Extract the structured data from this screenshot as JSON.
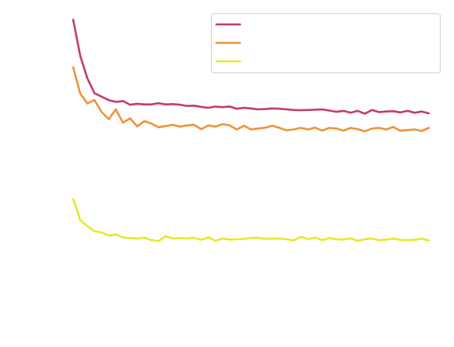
{
  "chart_data": {
    "type": "line",
    "title": "",
    "xlabel": "",
    "ylabel": "",
    "axes_visible": false,
    "grid": false,
    "legend": {
      "placement": "top-right",
      "entries_text": "none shown"
    },
    "x": [
      0,
      1,
      2,
      3,
      4,
      5,
      6,
      7,
      8,
      9,
      10,
      11,
      12,
      13,
      14,
      15,
      16,
      17,
      18,
      19,
      20,
      21,
      22,
      23,
      24,
      25,
      26,
      27,
      28,
      29,
      30,
      31,
      32,
      33,
      34,
      35,
      36,
      37,
      38,
      39,
      40,
      41,
      42,
      43,
      44,
      45,
      46,
      47,
      48,
      49,
      50
    ],
    "xlim": [
      0,
      50
    ],
    "ylim": [
      0,
      1
    ],
    "series": [
      {
        "color": "#c43b6e",
        "values": [
          1.0,
          0.883,
          0.81,
          0.762,
          0.751,
          0.74,
          0.734,
          0.737,
          0.725,
          0.728,
          0.726,
          0.726,
          0.73,
          0.726,
          0.727,
          0.725,
          0.721,
          0.722,
          0.718,
          0.715,
          0.719,
          0.717,
          0.719,
          0.712,
          0.715,
          0.713,
          0.71,
          0.711,
          0.713,
          0.712,
          0.71,
          0.708,
          0.707,
          0.708,
          0.709,
          0.71,
          0.706,
          0.702,
          0.705,
          0.699,
          0.705,
          0.696,
          0.708,
          0.701,
          0.703,
          0.704,
          0.7,
          0.705,
          0.699,
          0.703,
          0.697
        ]
      },
      {
        "color": "#f0923a",
        "values": [
          0.846,
          0.761,
          0.729,
          0.74,
          0.701,
          0.678,
          0.71,
          0.667,
          0.681,
          0.655,
          0.672,
          0.664,
          0.652,
          0.656,
          0.66,
          0.654,
          0.658,
          0.66,
          0.646,
          0.658,
          0.654,
          0.662,
          0.658,
          0.645,
          0.657,
          0.645,
          0.648,
          0.651,
          0.657,
          0.65,
          0.642,
          0.645,
          0.65,
          0.645,
          0.651,
          0.641,
          0.65,
          0.648,
          0.641,
          0.65,
          0.646,
          0.639,
          0.648,
          0.65,
          0.645,
          0.653,
          0.641,
          0.643,
          0.645,
          0.64,
          0.65
        ]
      },
      {
        "color": "#e8e82a",
        "values": [
          0.42,
          0.352,
          0.332,
          0.316,
          0.312,
          0.302,
          0.305,
          0.296,
          0.294,
          0.292,
          0.295,
          0.287,
          0.284,
          0.3,
          0.292,
          0.294,
          0.292,
          0.295,
          0.288,
          0.296,
          0.285,
          0.292,
          0.289,
          0.29,
          0.291,
          0.294,
          0.295,
          0.291,
          0.292,
          0.292,
          0.29,
          0.286,
          0.298,
          0.29,
          0.296,
          0.287,
          0.294,
          0.29,
          0.289,
          0.293,
          0.285,
          0.29,
          0.292,
          0.287,
          0.289,
          0.292,
          0.288,
          0.287,
          0.288,
          0.292,
          0.286
        ]
      }
    ]
  }
}
